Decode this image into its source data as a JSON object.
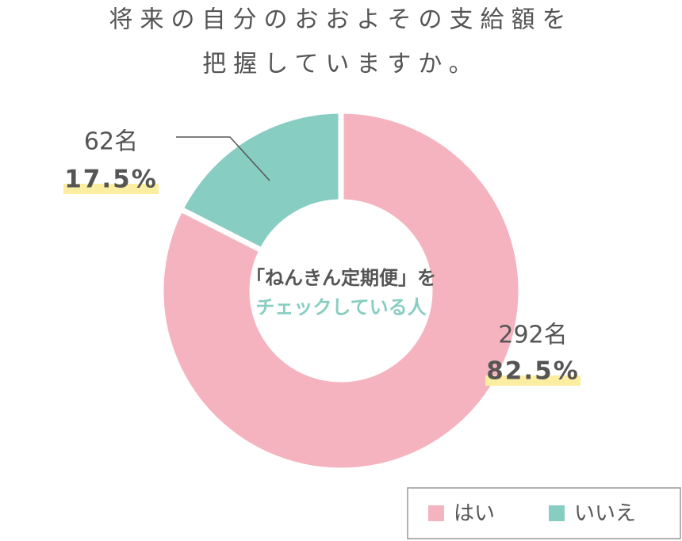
{
  "chart_data": {
    "type": "donut",
    "title": [
      "将来の自分のおおよその支給額を",
      "把握していますか。"
    ],
    "center_text": [
      "「ねんきん定期便」を",
      "チェックしている人"
    ],
    "categories": [
      "はい",
      "いいえ"
    ],
    "values": [
      82.5,
      17.5
    ],
    "value_labels": [
      "82.5%",
      "17.5%"
    ],
    "counts": [
      292,
      62
    ],
    "count_labels": [
      "292名",
      "62名"
    ],
    "colors": [
      "#f5b3bf",
      "#88cdc1"
    ],
    "legend": "bottom-right"
  }
}
